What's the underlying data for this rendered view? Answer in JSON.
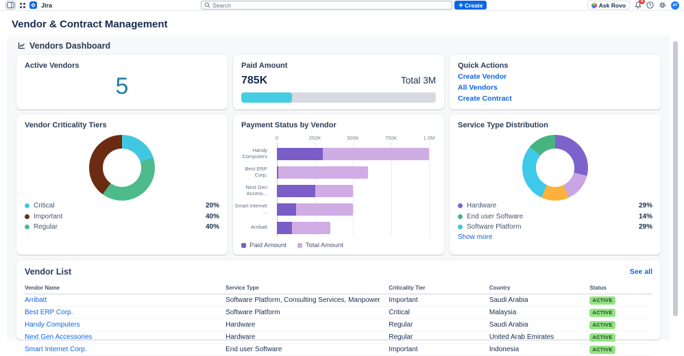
{
  "topbar": {
    "app_name": "Jira",
    "search_placeholder": "Search",
    "create_label": "Create",
    "ask_rovo_label": "Ask Rovo",
    "notification_count": "5",
    "avatar_initials": "AT"
  },
  "page": {
    "title": "Vendor & Contract Management",
    "section_title": "Vendors Dashboard"
  },
  "cards": {
    "active_vendors": {
      "title": "Active Vendors",
      "value": "5",
      "value_color": "#1E7F9E"
    },
    "paid_amount": {
      "title": "Paid Amount",
      "value": "785K",
      "total_label": "Total 3M",
      "percent": 26,
      "fill_color": "#44CDE3",
      "track_color": "#D7DAE0"
    },
    "quick_actions": {
      "title": "Quick Actions",
      "links": [
        "Create Vendor",
        "All Vendors",
        "Create Contract"
      ]
    }
  },
  "chart_data": [
    {
      "id": "criticality",
      "type": "donut",
      "title": "Vendor Criticality Tiers",
      "segments": [
        {
          "label": "Critical",
          "value": 20,
          "color": "#41C7E0"
        },
        {
          "label": "Regular",
          "value": 40,
          "color": "#4DBB8C"
        },
        {
          "label": "Important",
          "value": 40,
          "color": "#6B2B12"
        }
      ],
      "legend": [
        {
          "label": "Critical",
          "value": "20%",
          "color": "#41C7E0"
        },
        {
          "label": "Important",
          "value": "40%",
          "color": "#6B2B12"
        },
        {
          "label": "Regular",
          "value": "40%",
          "color": "#4DBB8C"
        }
      ]
    },
    {
      "id": "payment",
      "type": "bar",
      "title": "Payment Status by Vendor",
      "orientation": "horizontal",
      "categories": [
        "Handy\nComputers",
        "Best ERP Corp.",
        "Next Gen\nAccess...",
        "Smart Internet\n...",
        "Arribatt"
      ],
      "series": [
        {
          "name": "Paid Amount",
          "color": "#7A5DC7",
          "values": [
            300000,
            10000,
            250000,
            125000,
            100000
          ]
        },
        {
          "name": "Total Amount",
          "color": "#D0ACE4",
          "values": [
            1000000,
            600000,
            500000,
            500000,
            350000
          ]
        }
      ],
      "xlim": [
        0,
        1000000
      ],
      "xticks": [
        {
          "label": "0",
          "value": 0
        },
        {
          "label": "250K",
          "value": 250000
        },
        {
          "label": "500K",
          "value": 500000
        },
        {
          "label": "750K",
          "value": 750000
        },
        {
          "label": "1.0M",
          "value": 1000000
        }
      ]
    },
    {
      "id": "service",
      "type": "donut",
      "title": "Service Type Distribution",
      "show_more": "Show more",
      "segments": [
        {
          "label": "Hardware",
          "value": 29,
          "color": "#7C63CC"
        },
        {
          "label": "",
          "value": 14,
          "color": "#C9A5E3"
        },
        {
          "label": "",
          "value": 14,
          "color": "#FBB13C"
        },
        {
          "label": "Software Platform",
          "value": 29,
          "color": "#3EC8EA"
        },
        {
          "label": "End user Software",
          "value": 14,
          "color": "#46B380"
        }
      ],
      "legend": [
        {
          "label": "Hardware",
          "value": "29%",
          "color": "#7C63CC"
        },
        {
          "label": "End user Software",
          "value": "14%",
          "color": "#46B380"
        },
        {
          "label": "Software Platform",
          "value": "29%",
          "color": "#3EC8EA"
        }
      ]
    }
  ],
  "vendor_list": {
    "title": "Vendor List",
    "see_all": "See all",
    "columns": [
      "Vendor Name",
      "Service Type",
      "Criticality Tier",
      "Country",
      "Status"
    ],
    "rows": [
      {
        "name": "Arribatt",
        "service_type": "Software Platform, Consulting Services, Manpower",
        "criticality": "Important",
        "country": "Saudi Arabia",
        "status": "ACTIVE"
      },
      {
        "name": "Best ERP Corp.",
        "service_type": "Software Platform",
        "criticality": "Critical",
        "country": "Malaysia",
        "status": "ACTIVE"
      },
      {
        "name": "Handy Computers",
        "service_type": "Hardware",
        "criticality": "Regular",
        "country": "Saudi Arabia",
        "status": "ACTIVE"
      },
      {
        "name": "Next Gen Accessories",
        "service_type": "Hardware",
        "criticality": "Regular",
        "country": "United Arab Emirates",
        "status": "ACTIVE"
      },
      {
        "name": "Smart Internet Corp.",
        "service_type": "End user Software",
        "criticality": "Important",
        "country": "Indonesia",
        "status": "ACTIVE"
      }
    ],
    "status_style": {
      "bg": "#94E283",
      "text": "#1C4A2A"
    }
  }
}
